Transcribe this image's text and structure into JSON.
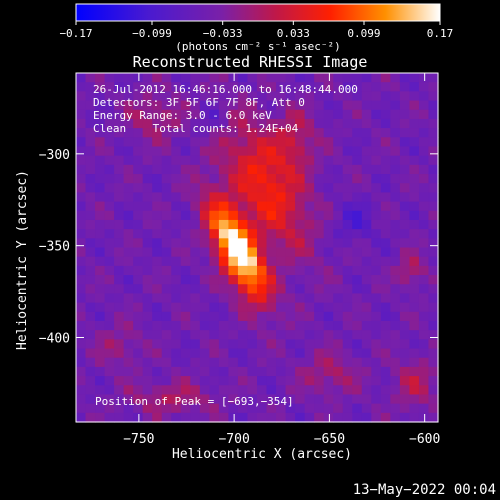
{
  "chart_data": {
    "type": "heatmap",
    "title": "Reconstructed RHESSI Image",
    "xlabel": "Heliocentric X (arcsec)",
    "ylabel": "Heliocentric Y (arcsec)",
    "xlim": [
      -783,
      -593
    ],
    "ylim": [
      -446,
      -256
    ],
    "x_ticks": [
      -750,
      -700,
      -650,
      -600
    ],
    "y_ticks": [
      -300,
      -350,
      -400
    ],
    "x_tick_labels": [
      "−750",
      "−700",
      "−650",
      "−600"
    ],
    "y_tick_labels": [
      "−300",
      "−350",
      "−400"
    ],
    "colorbar": {
      "min": -0.17,
      "max": 0.17,
      "tick_values": [
        -0.17,
        -0.099,
        -0.033,
        0.033,
        0.099,
        0.17
      ],
      "tick_labels": [
        "−0.17",
        "−0.099",
        "−0.033",
        "0.033",
        "0.099",
        "0.17"
      ],
      "units_label": "(photons cm⁻² s⁻¹ asec⁻²)"
    },
    "annotations": [
      "26-Jul-2012 16:46:16.000 to 16:48:44.000",
      "Detectors: 3F 5F 6F 7F 8F, Att 0",
      "Energy Range: 3.0 - 6.0 keV",
      "Clean    Total counts: 1.24E+04"
    ],
    "peak_label": "Position of Peak = [−693,−354]",
    "peak": [
      -693,
      -354
    ],
    "sources": [
      {
        "x": -698,
        "y": -353,
        "sx": 7,
        "sy": 20,
        "amp": 0.24,
        "rot": -25
      },
      {
        "x": -683,
        "y": -318,
        "sx": 12,
        "sy": 26,
        "amp": 0.11,
        "rot": -25
      },
      {
        "x": -668,
        "y": -293,
        "sx": 8,
        "sy": 12,
        "amp": 0.06,
        "rot": 0
      },
      {
        "x": -742,
        "y": -280,
        "sx": 10,
        "sy": 9,
        "amp": 0.05,
        "rot": 0
      },
      {
        "x": -607,
        "y": -364,
        "sx": 5,
        "sy": 6,
        "amp": 0.06,
        "rot": 0
      },
      {
        "x": -650,
        "y": -420,
        "sx": 10,
        "sy": 8,
        "amp": 0.05,
        "rot": 0
      },
      {
        "x": -605,
        "y": -425,
        "sx": 8,
        "sy": 10,
        "amp": 0.05,
        "rot": 0
      },
      {
        "x": -760,
        "y": -405,
        "sx": 8,
        "sy": 8,
        "amp": 0.04,
        "rot": 0
      },
      {
        "x": -733,
        "y": -433,
        "sx": 16,
        "sy": 6,
        "amp": 0.05,
        "rot": 0
      },
      {
        "x": -637,
        "y": -337,
        "sx": 8,
        "sy": 8,
        "amp": -0.04,
        "rot": 0
      },
      {
        "x": -712,
        "y": -282,
        "sx": 6,
        "sy": 6,
        "amp": -0.03,
        "rot": 0
      }
    ]
  },
  "footer": {
    "date": "13−May−2022 00:04"
  }
}
